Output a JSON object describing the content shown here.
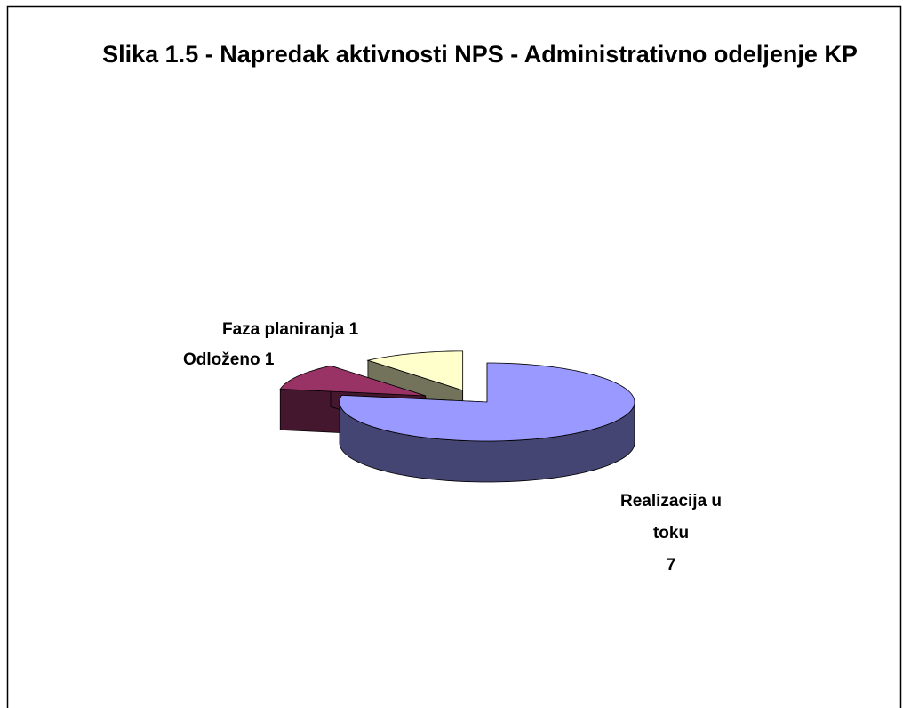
{
  "chart_data": {
    "type": "pie",
    "title": "Slika 1.5 - Napredak aktivnosti NPS - Administrativno odeljenje KP",
    "categories": [
      "Realizacija u toku",
      "Odloženo",
      "Faza planiranja"
    ],
    "values": [
      7,
      1,
      1
    ],
    "colors": [
      "#9999ff",
      "#993366",
      "#ffffcc"
    ]
  }
}
